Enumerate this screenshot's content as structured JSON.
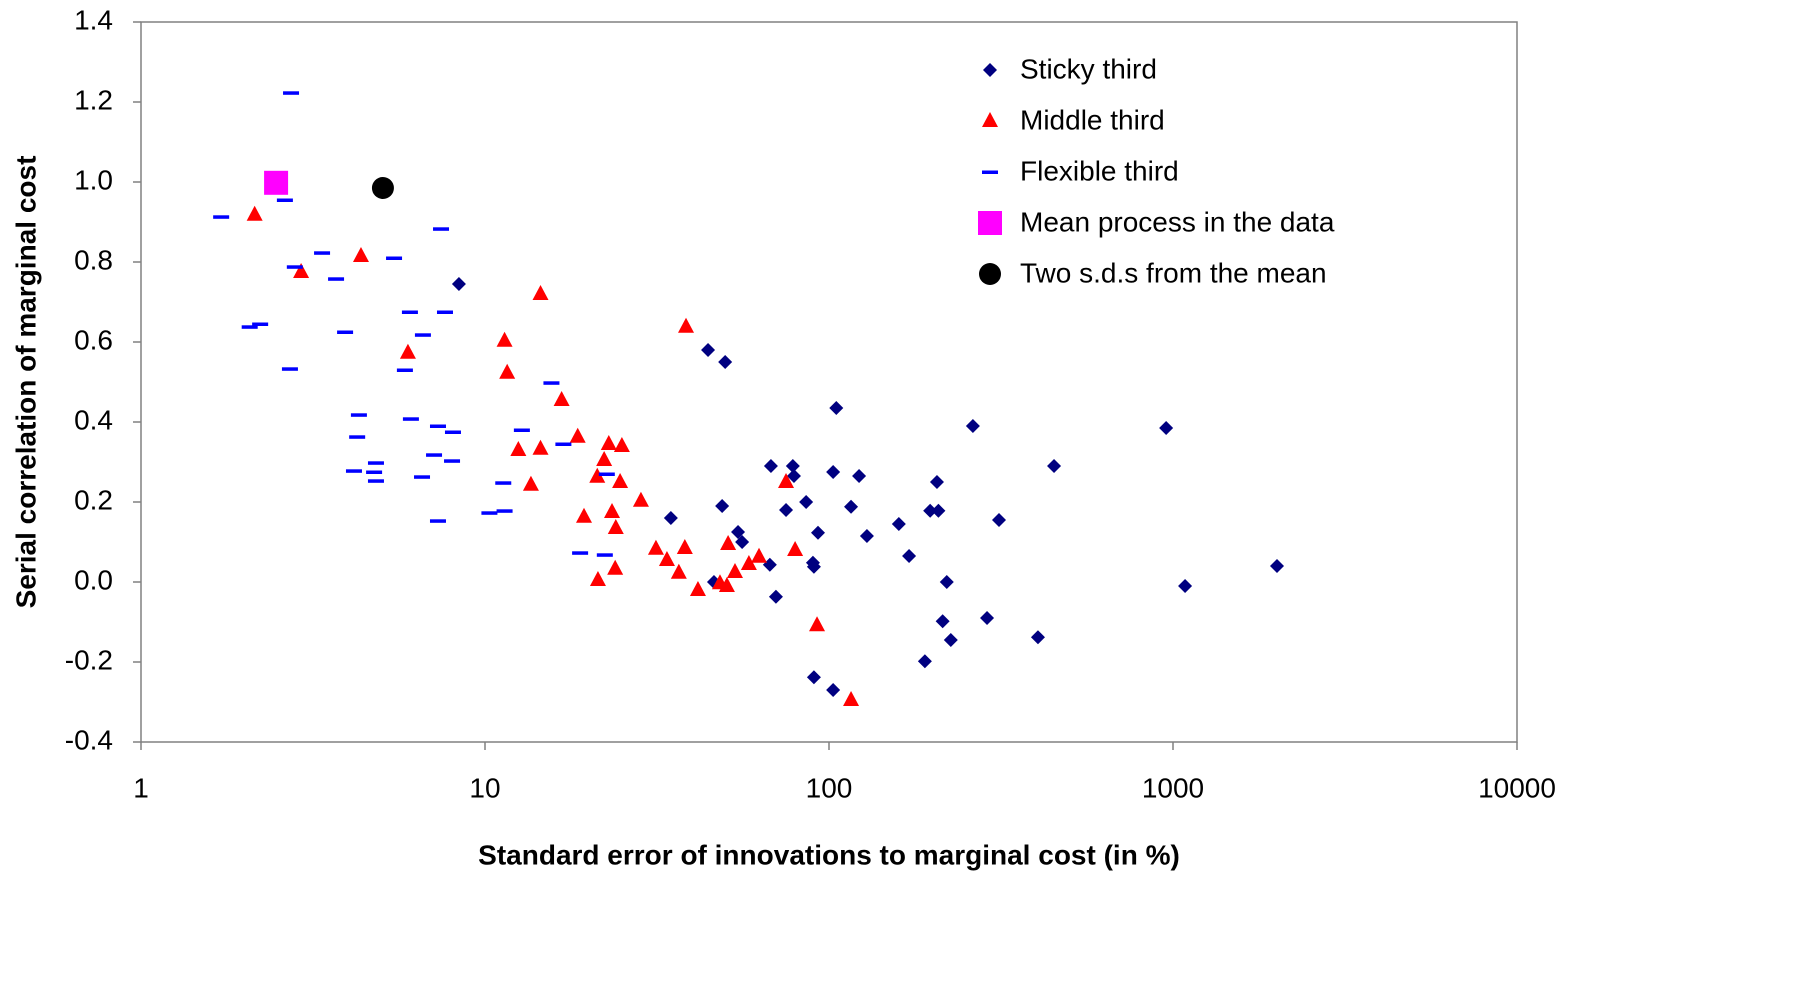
{
  "chart_data": {
    "type": "scatter",
    "xlabel": "Standard error of innovations to marginal cost (in %)",
    "ylabel": "Serial correlation of marginal cost",
    "xlog": true,
    "xlim": [
      1,
      10000
    ],
    "ylim": [
      -0.4,
      1.4
    ],
    "xticks": [
      1,
      10,
      100,
      1000,
      10000
    ],
    "yticks": [
      1.4,
      1.2,
      {
        "value": 1.0,
        "label": "1.0"
      },
      0.8,
      0.6,
      0.4,
      0.2,
      {
        "value": 0.0,
        "label": "0.0"
      },
      -0.2,
      -0.4
    ],
    "grid": false,
    "legend": "upper right",
    "series": [
      {
        "name": "Sticky third",
        "color": "#000080",
        "marker": "diamond",
        "x": [
          8.4,
          44.5,
          49.9,
          105,
          955,
          262,
          451,
          34.7,
          46.3,
          48.9,
          54.4,
          55.9,
          67.8,
          78.5,
          79.1,
          75,
          85.8,
          67.3,
          70.1,
          89.8,
          90.4,
          92.9,
          90.4,
          102.8,
          102.8,
          115.9,
          122.3,
          128.9,
          159.6,
          170.9,
          206,
          196.8,
          208,
          190,
          220,
          214,
          226,
          312,
          288,
          405,
          1084,
          2006
        ],
        "y": [
          0.745,
          0.58,
          0.55,
          0.435,
          0.385,
          0.39,
          0.29,
          0.16,
          0.0,
          0.19,
          0.125,
          0.1,
          0.29,
          0.29,
          0.265,
          0.18,
          0.2,
          0.043,
          -0.037,
          0.048,
          0.038,
          0.123,
          -0.238,
          0.275,
          -0.27,
          0.188,
          0.265,
          0.115,
          0.145,
          0.065,
          0.25,
          0.178,
          0.178,
          -0.198,
          0.0,
          -0.098,
          -0.145,
          0.155,
          -0.09,
          -0.138,
          -0.01,
          0.04
        ]
      },
      {
        "name": "Middle third",
        "color": "#ff0000",
        "marker": "triangle",
        "x": [
          2.14,
          2.92,
          4.36,
          5.97,
          11.4,
          11.6,
          14.5,
          14.5,
          12.5,
          13.6,
          16.7,
          18.6,
          19.4,
          38.4,
          21.2,
          22.2,
          22.9,
          25,
          23.4,
          24,
          24.7,
          21.3,
          23.9,
          28.4,
          31.4,
          33.8,
          36.6,
          38.1,
          41.6,
          48.2,
          50.5,
          50.9,
          53.3,
          58.5,
          62.6,
          75,
          79.7,
          92.3,
          115.9
        ],
        "y": [
          0.918,
          0.775,
          0.815,
          0.573,
          0.603,
          0.523,
          0.72,
          0.333,
          0.33,
          0.243,
          0.455,
          0.363,
          0.163,
          0.638,
          0.263,
          0.305,
          0.345,
          0.34,
          0.175,
          0.135,
          0.25,
          0.005,
          0.033,
          0.203,
          0.083,
          0.055,
          0.023,
          0.085,
          -0.02,
          -0.003,
          -0.01,
          0.095,
          0.025,
          0.045,
          0.063,
          0.25,
          0.08,
          -0.108,
          -0.295
        ]
      },
      {
        "name": "Flexible third",
        "color": "#0000ff",
        "marker": "dash",
        "x": [
          1.71,
          2.62,
          2.73,
          2.8,
          3.36,
          3.69,
          2.07,
          2.22,
          2.71,
          3.92,
          4.3,
          4.25,
          4.16,
          4.82,
          4.76,
          4.82,
          5.44,
          5.85,
          6.05,
          6.09,
          6.6,
          6.56,
          7.11,
          7.3,
          7.45,
          7.65,
          7.3,
          8.07,
          8.02,
          10.3,
          11.3,
          11.4,
          12.8,
          15.6,
          16.9,
          18.9,
          22.3,
          22.6
        ],
        "y": [
          0.913,
          0.955,
          1.223,
          0.788,
          0.823,
          0.758,
          0.638,
          0.645,
          0.533,
          0.625,
          0.418,
          0.363,
          0.278,
          0.298,
          0.275,
          0.253,
          0.81,
          0.53,
          0.675,
          0.408,
          0.618,
          0.263,
          0.318,
          0.39,
          0.883,
          0.675,
          0.153,
          0.375,
          0.303,
          0.173,
          0.248,
          0.178,
          0.38,
          0.498,
          0.345,
          0.073,
          0.068,
          0.27
        ]
      },
      {
        "name": "Mean process in the data",
        "color": "#ff00ff",
        "marker": "square",
        "x": [
          2.47
        ],
        "y": [
          0.998
        ]
      },
      {
        "name": "Two s.d.s from the mean",
        "color": "#000000",
        "marker": "circle",
        "x": [
          5.05
        ],
        "y": [
          0.985
        ]
      }
    ]
  }
}
